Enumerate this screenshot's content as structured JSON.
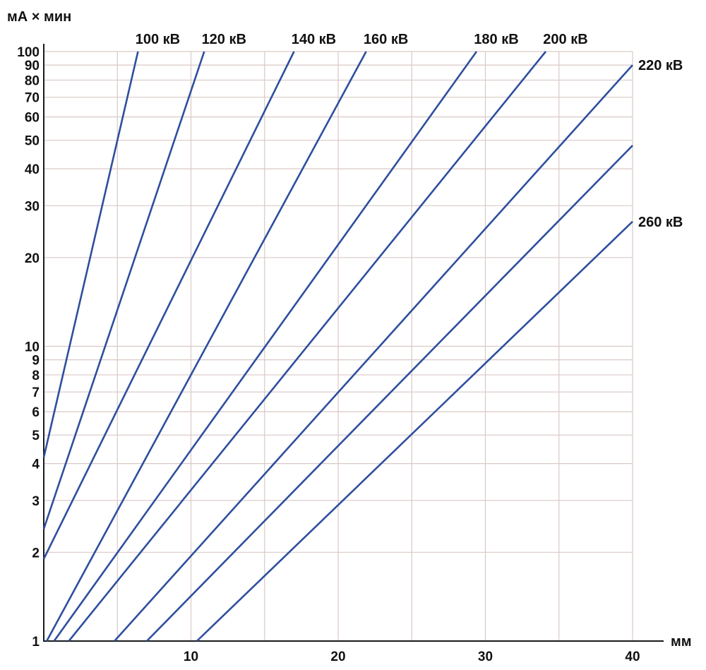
{
  "chart_data": {
    "type": "line",
    "title": "",
    "xlabel": "мм",
    "ylabel": "мА × мин",
    "x_scale": "linear",
    "y_scale": "log",
    "xlim": [
      0,
      40
    ],
    "ylim": [
      1,
      100
    ],
    "x_ticks": [
      10,
      20,
      30,
      40
    ],
    "y_ticks": [
      1,
      2,
      3,
      4,
      5,
      6,
      7,
      8,
      9,
      10,
      20,
      30,
      40,
      50,
      60,
      70,
      80,
      90,
      100
    ],
    "x_gridlines": [
      5,
      10,
      15,
      20,
      25,
      30,
      35,
      40
    ],
    "grid": true,
    "line_color": "#2e4f9e",
    "series": [
      {
        "name": "100 кВ",
        "points": [
          [
            0,
            4.2
          ],
          [
            6.4,
            100
          ]
        ]
      },
      {
        "name": "120 кВ",
        "points": [
          [
            0,
            2.4
          ],
          [
            10.9,
            100
          ]
        ]
      },
      {
        "name": "140 кВ",
        "points": [
          [
            0,
            1.9
          ],
          [
            17.0,
            100
          ]
        ]
      },
      {
        "name": "160 кВ",
        "points": [
          [
            0.2,
            1
          ],
          [
            21.9,
            100
          ]
        ]
      },
      {
        "name": "180 кВ",
        "points": [
          [
            0.7,
            1
          ],
          [
            29.4,
            100
          ]
        ]
      },
      {
        "name": "200 кВ",
        "points": [
          [
            1.7,
            1
          ],
          [
            34.1,
            100
          ]
        ]
      },
      {
        "name": "220 кВ",
        "points": [
          [
            4.8,
            1
          ],
          [
            40,
            90
          ]
        ]
      },
      {
        "name": "",
        "points": [
          [
            7.0,
            1
          ],
          [
            40,
            48
          ]
        ]
      },
      {
        "name": "260 кВ",
        "points": [
          [
            10.4,
            1
          ],
          [
            40,
            26.5
          ]
        ]
      }
    ]
  }
}
